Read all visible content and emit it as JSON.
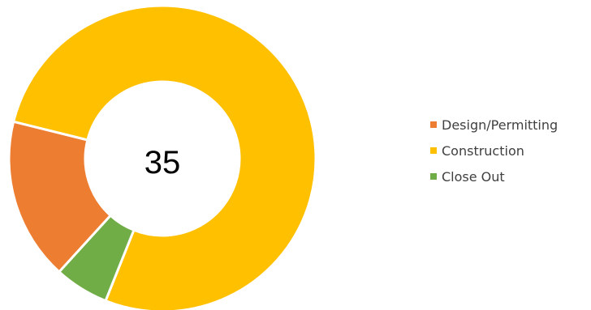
{
  "chart_data": {
    "type": "pie",
    "variant": "donut",
    "title": "",
    "center_text": "35",
    "legend_position": "right",
    "slices": [
      {
        "label": "Construction",
        "value": 27,
        "color": "#FFC000"
      },
      {
        "label": "Close Out",
        "value": 2,
        "color": "#70AD47"
      },
      {
        "label": "Design/Permitting",
        "value": 6,
        "color": "#ED7D31"
      }
    ],
    "legend": [
      {
        "label": "Design/Permitting",
        "color": "#ED7D31"
      },
      {
        "label": "Construction",
        "color": "#FFC000"
      },
      {
        "label": "Close Out",
        "color": "#70AD47"
      }
    ]
  }
}
